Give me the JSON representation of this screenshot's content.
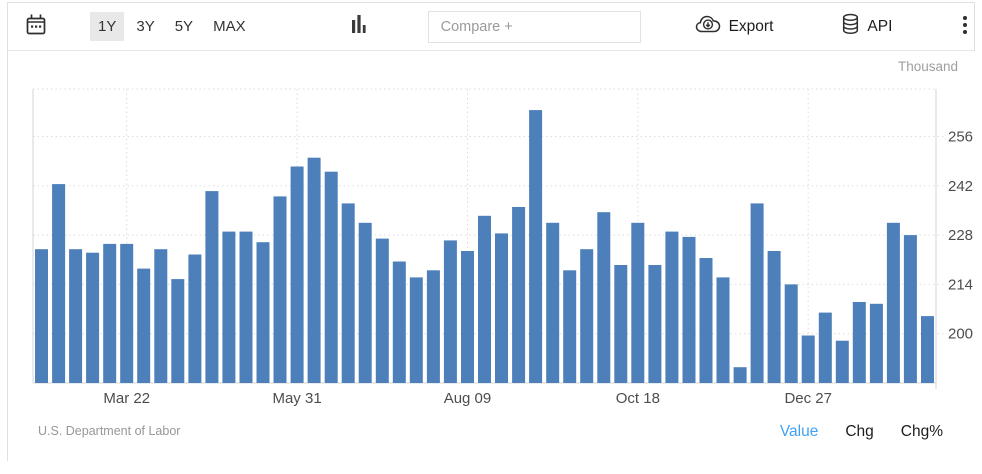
{
  "toolbar": {
    "ranges": [
      {
        "label": "1Y",
        "active": true
      },
      {
        "label": "3Y",
        "active": false
      },
      {
        "label": "5Y",
        "active": false
      },
      {
        "label": "MAX",
        "active": false
      }
    ],
    "compare_placeholder": "Compare +",
    "export_label": "Export",
    "api_label": "API"
  },
  "footer": {
    "source": "U.S. Department of Labor",
    "modes": [
      {
        "label": "Value",
        "active": true
      },
      {
        "label": "Chg",
        "active": false
      },
      {
        "label": "Chg%",
        "active": false
      }
    ]
  },
  "chart_data": {
    "type": "bar",
    "title": "",
    "unit_label": "Thousand",
    "ylabel": "Thousand",
    "xlabel": "",
    "bar_color": "#4d80bb",
    "grid": "dotted",
    "legend": "none",
    "y_ticks": [
      200,
      214,
      228,
      242,
      256
    ],
    "ylim": [
      186,
      269.5
    ],
    "x_tick_labels": [
      "Mar 22",
      "May 31",
      "Aug 09",
      "Oct 18",
      "Dec 27"
    ],
    "x_tick_indices": [
      5,
      15,
      25,
      35,
      45
    ],
    "values": [
      224,
      242.5,
      224,
      223,
      225.5,
      225.5,
      218.5,
      224,
      215.5,
      222.5,
      240.5,
      229,
      229,
      226,
      239,
      247.5,
      250,
      246,
      237,
      231.5,
      227,
      220.5,
      216,
      218,
      226.5,
      223.5,
      233.5,
      228.5,
      236,
      263.5,
      231.5,
      218,
      224,
      234.5,
      219.5,
      231.5,
      219.5,
      229,
      227.5,
      221.5,
      216,
      190.5,
      237,
      223.5,
      214,
      199.5,
      206,
      198,
      209,
      208.5,
      231.5,
      228,
      205
    ]
  },
  "colors": {
    "accent_blue": "#42a0f5",
    "bar_blue": "#4d80bb",
    "grid_gray": "#dcdcdc",
    "axis_gray": "#d6d6d6",
    "tick_text": "#4d4d4d",
    "muted_text": "#999999"
  }
}
